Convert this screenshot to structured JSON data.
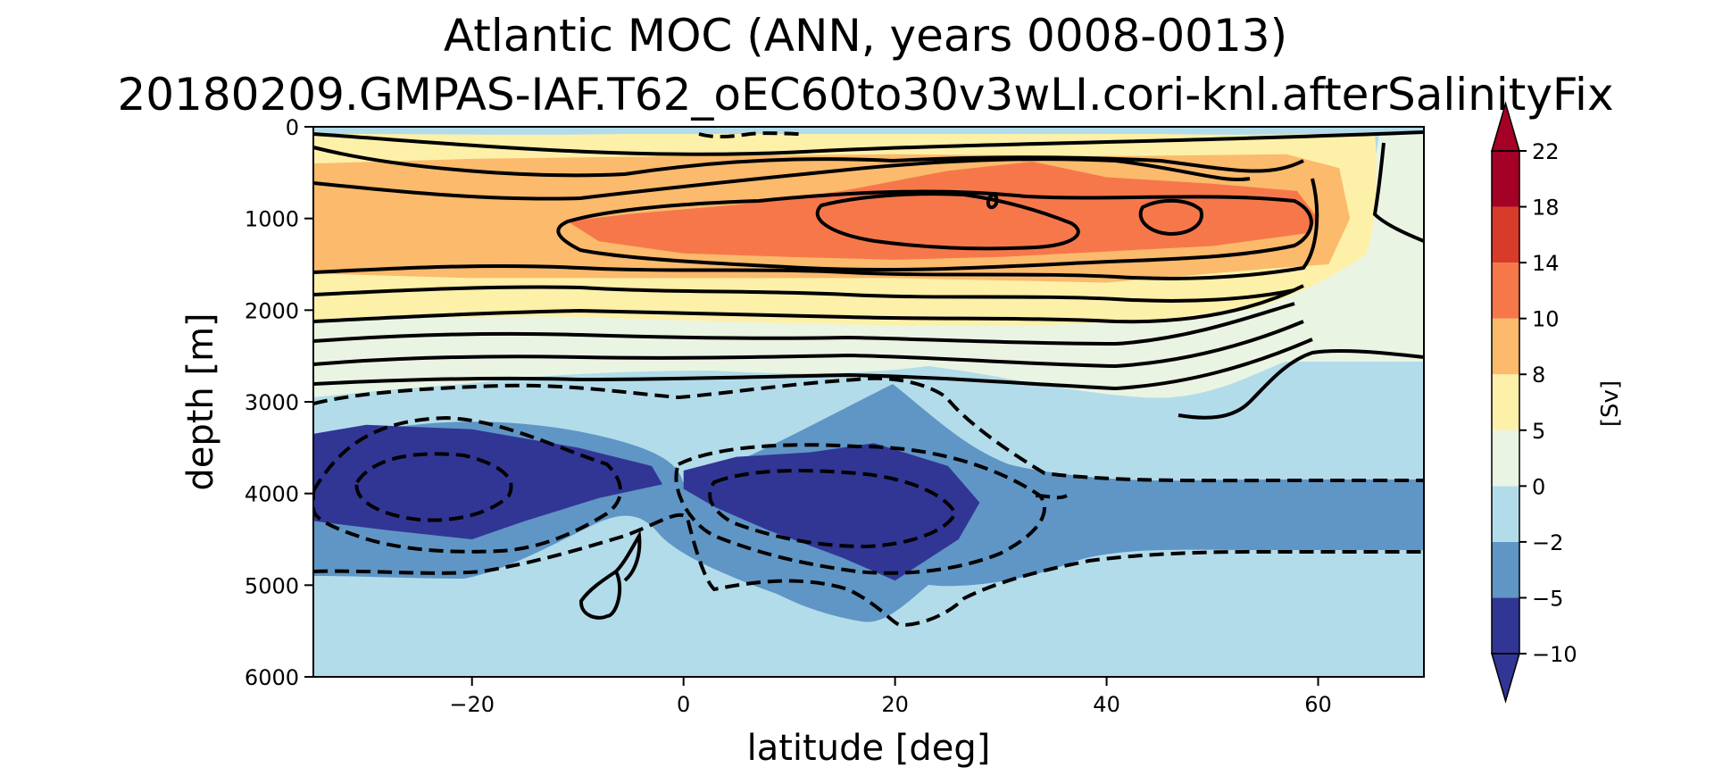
{
  "chart_data": {
    "type": "heatmap",
    "title": "Atlantic MOC (ANN, years 0008-0013)",
    "subtitle": "20180209.GMPAS-IAF.T62_oEC60to30v3wLI.cori-knl.afterSalinityFix",
    "xlabel": "latitude [deg]",
    "ylabel": "depth [m]",
    "xlim": [
      -35,
      70
    ],
    "ylim": [
      6000,
      0
    ],
    "x_ticks": [
      -20,
      0,
      20,
      40,
      60
    ],
    "x_tick_labels": [
      "−20",
      "0",
      "20",
      "40",
      "60"
    ],
    "y_ticks": [
      0,
      1000,
      2000,
      3000,
      4000,
      5000,
      6000
    ],
    "y_tick_labels": [
      "0",
      "1000",
      "2000",
      "3000",
      "4000",
      "5000",
      "6000"
    ],
    "colorbar": {
      "label": "[Sv]",
      "levels": [
        -10,
        -5,
        -2,
        0,
        5,
        8,
        10,
        14,
        18,
        22
      ],
      "level_labels": [
        "−10",
        "−5",
        "−2",
        "0",
        "5",
        "8",
        "10",
        "14",
        "18",
        "22"
      ],
      "colors": [
        "#313695",
        "#5f96c5",
        "#b3dcea",
        "#eaf4e2",
        "#fdf0a9",
        "#fbba6c",
        "#f6784a",
        "#d93b2b",
        "#a50026"
      ],
      "extend": "both"
    },
    "regions": [
      {
        "name": "surface-negative",
        "level": "-2..0",
        "color": "#b3dcea",
        "points": [
          [
            -35,
            0
          ],
          [
            70,
            0
          ],
          [
            70,
            40
          ],
          [
            40,
            60
          ],
          [
            10,
            70
          ],
          [
            -20,
            60
          ],
          [
            -35,
            40
          ]
        ]
      },
      {
        "name": "band-8-10",
        "level": "8..10",
        "color": "#fbba6c",
        "points": [
          [
            -35,
            400
          ],
          [
            -20,
            350
          ],
          [
            0,
            320
          ],
          [
            20,
            300
          ],
          [
            40,
            320
          ],
          [
            57,
            300
          ],
          [
            62,
            450
          ],
          [
            63,
            1000
          ],
          [
            61,
            1500
          ],
          [
            55,
            1550
          ],
          [
            40,
            1700
          ],
          [
            20,
            1650
          ],
          [
            0,
            1650
          ],
          [
            -20,
            1650
          ],
          [
            -35,
            1600
          ]
        ]
      },
      {
        "name": "core-10-14",
        "level": "10..14",
        "color": "#f6784a",
        "points": [
          [
            -11,
            1030
          ],
          [
            -5,
            950
          ],
          [
            5,
            850
          ],
          [
            15,
            700
          ],
          [
            25,
            480
          ],
          [
            33,
            380
          ],
          [
            40,
            550
          ],
          [
            50,
            620
          ],
          [
            58,
            700
          ],
          [
            60,
            1000
          ],
          [
            59,
            1160
          ],
          [
            50,
            1300
          ],
          [
            40,
            1360
          ],
          [
            30,
            1420
          ],
          [
            20,
            1450
          ],
          [
            10,
            1420
          ],
          [
            0,
            1380
          ],
          [
            -8,
            1250
          ]
        ]
      },
      {
        "name": "deep-cell-west",
        "level": "-10..-5",
        "color": "#313695",
        "points": [
          [
            -35,
            3350
          ],
          [
            -30,
            3250
          ],
          [
            -20,
            3300
          ],
          [
            -10,
            3500
          ],
          [
            -3,
            3700
          ],
          [
            -2,
            3900
          ],
          [
            -8,
            4050
          ],
          [
            -15,
            4300
          ],
          [
            -20,
            4500
          ],
          [
            -28,
            4400
          ],
          [
            -35,
            4300
          ]
        ]
      },
      {
        "name": "deep-cell-east",
        "level": "-10..-5",
        "color": "#313695",
        "points": [
          [
            0,
            3750
          ],
          [
            5,
            3600
          ],
          [
            12,
            3550
          ],
          [
            18,
            3450
          ],
          [
            25,
            3700
          ],
          [
            28,
            4100
          ],
          [
            26,
            4500
          ],
          [
            22,
            4800
          ],
          [
            20,
            4950
          ],
          [
            15,
            4700
          ],
          [
            8,
            4400
          ],
          [
            3,
            4150
          ],
          [
            0,
            3950
          ]
        ]
      }
    ]
  }
}
